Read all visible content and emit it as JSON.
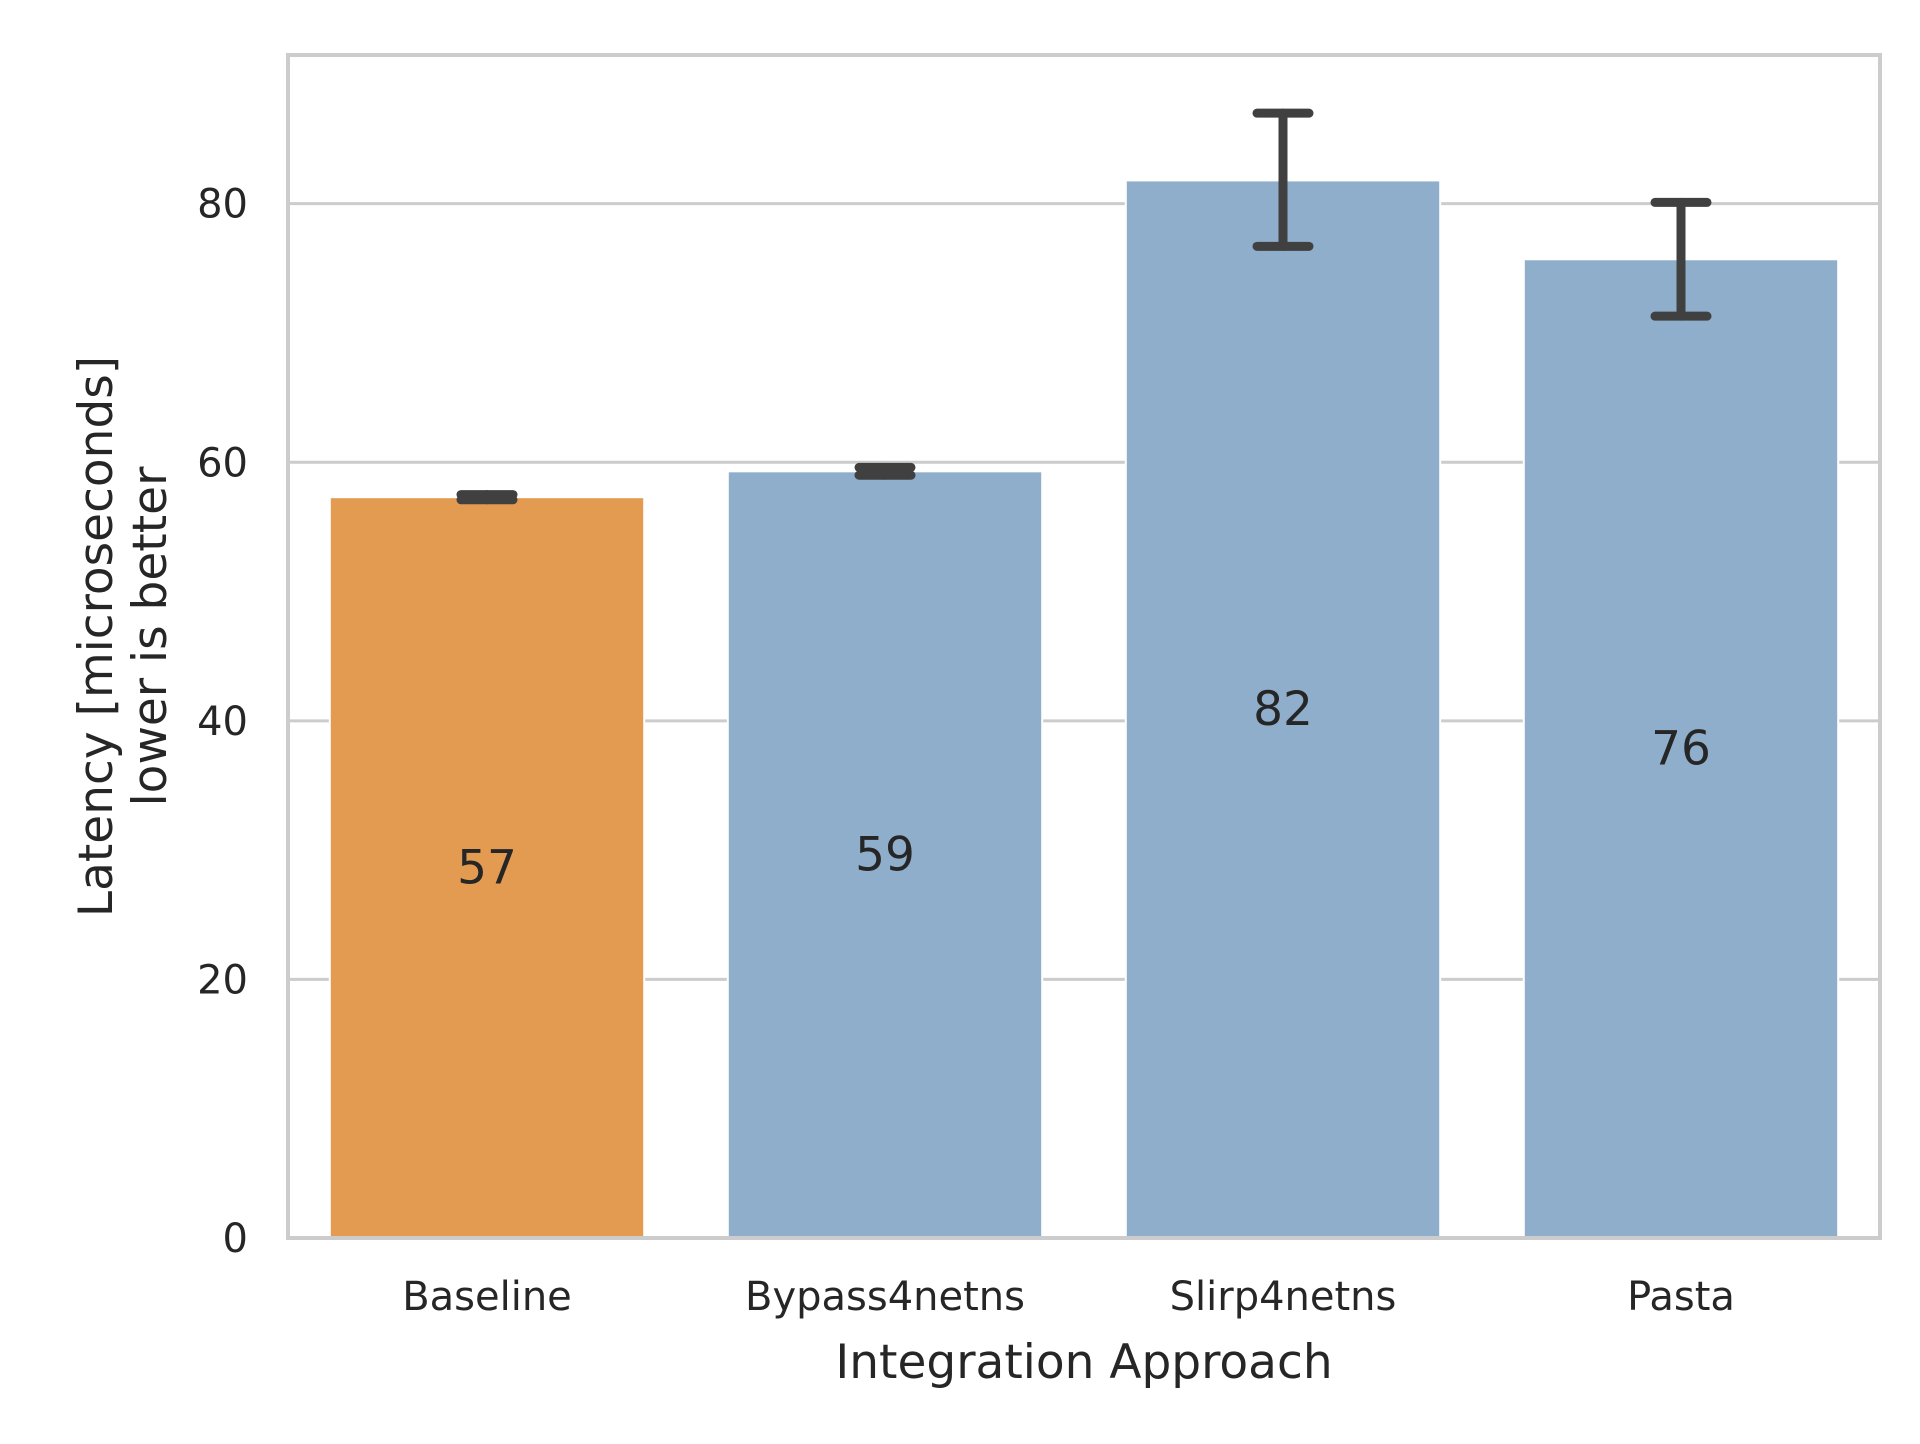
{
  "chart_data": {
    "type": "bar",
    "title": "",
    "xlabel": "Integration Approach",
    "ylabel_lines": [
      "Latency  [microseconds]",
      "lower is better"
    ],
    "categories": [
      "Baseline",
      "Bypass4netns",
      "Slirp4netns",
      "Pasta"
    ],
    "values": [
      57.3,
      59.3,
      81.8,
      75.7
    ],
    "value_labels": [
      "57",
      "59",
      "82",
      "76"
    ],
    "error_low": [
      57.1,
      59.0,
      76.7,
      71.3
    ],
    "error_high": [
      57.5,
      59.6,
      87.0,
      80.1
    ],
    "bar_colors": [
      "#e39b51",
      "#8eaecb",
      "#8eaecb",
      "#8eaecb"
    ],
    "ylim": [
      0,
      91.5
    ],
    "yticks": [
      0,
      20,
      40,
      60,
      80
    ],
    "grid": true,
    "colors": {
      "grid": "#cccccc",
      "frame": "#cccccc",
      "errorbar": "#404040",
      "text": "#262626"
    }
  }
}
